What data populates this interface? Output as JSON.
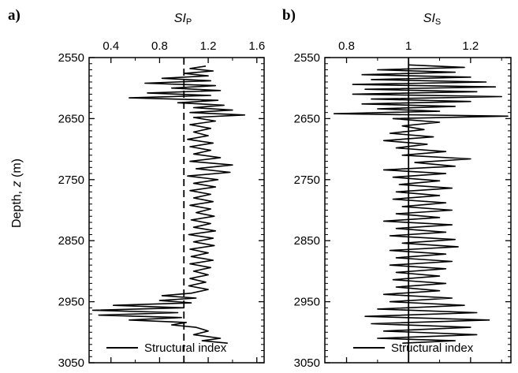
{
  "chart_data": [
    {
      "panel_label": "a)",
      "type": "line",
      "orientation": "depth-vertical",
      "title": "",
      "xlabel_main": "SI",
      "xlabel_sub": "P",
      "ylabel": "Depth, z (m)",
      "xlim": [
        0.22,
        1.66
      ],
      "xticks": [
        0.4,
        0.8,
        1.2,
        1.6
      ],
      "xtick_labels": [
        "0.4",
        "0.8",
        "1.2",
        "1.6"
      ],
      "ylim": [
        2550,
        3050
      ],
      "yticks": [
        2550,
        2650,
        2750,
        2850,
        2950,
        3050
      ],
      "ytick_labels": [
        "2550",
        "2650",
        "2750",
        "2850",
        "2950",
        "3050"
      ],
      "reference_line": {
        "x": 1.0,
        "style": "dashed"
      },
      "legend": {
        "label": "Structural index",
        "location": "bottom-right"
      },
      "series": [
        {
          "name": "Structural index",
          "color": "#000000",
          "points": [
            [
              1.18,
              2564
            ],
            [
              1.05,
              2568
            ],
            [
              1.24,
              2572
            ],
            [
              1.0,
              2576
            ],
            [
              1.2,
              2580
            ],
            [
              0.82,
              2584
            ],
            [
              1.22,
              2588
            ],
            [
              0.68,
              2592
            ],
            [
              1.26,
              2596
            ],
            [
              0.9,
              2600
            ],
            [
              1.3,
              2604
            ],
            [
              0.7,
              2608
            ],
            [
              1.22,
              2612
            ],
            [
              0.55,
              2616
            ],
            [
              1.28,
              2620
            ],
            [
              0.95,
              2624
            ],
            [
              1.33,
              2628
            ],
            [
              1.08,
              2632
            ],
            [
              1.4,
              2636
            ],
            [
              1.05,
              2640
            ],
            [
              1.5,
              2644
            ],
            [
              1.08,
              2648
            ],
            [
              1.26,
              2654
            ],
            [
              1.05,
              2660
            ],
            [
              1.22,
              2666
            ],
            [
              1.08,
              2672
            ],
            [
              1.2,
              2678
            ],
            [
              1.03,
              2684
            ],
            [
              1.24,
              2690
            ],
            [
              1.05,
              2696
            ],
            [
              1.22,
              2702
            ],
            [
              1.08,
              2708
            ],
            [
              1.3,
              2714
            ],
            [
              1.05,
              2720
            ],
            [
              1.4,
              2726
            ],
            [
              1.1,
              2732
            ],
            [
              1.38,
              2738
            ],
            [
              1.03,
              2744
            ],
            [
              1.28,
              2750
            ],
            [
              1.08,
              2756
            ],
            [
              1.26,
              2762
            ],
            [
              1.05,
              2768
            ],
            [
              1.22,
              2774
            ],
            [
              1.08,
              2780
            ],
            [
              1.24,
              2786
            ],
            [
              1.05,
              2792
            ],
            [
              1.22,
              2798
            ],
            [
              1.1,
              2804
            ],
            [
              1.25,
              2810
            ],
            [
              1.06,
              2816
            ],
            [
              1.22,
              2822
            ],
            [
              1.08,
              2828
            ],
            [
              1.26,
              2834
            ],
            [
              1.04,
              2840
            ],
            [
              1.24,
              2846
            ],
            [
              1.08,
              2852
            ],
            [
              1.25,
              2858
            ],
            [
              1.05,
              2864
            ],
            [
              1.2,
              2870
            ],
            [
              1.06,
              2876
            ],
            [
              1.24,
              2882
            ],
            [
              1.05,
              2888
            ],
            [
              1.22,
              2894
            ],
            [
              1.08,
              2900
            ],
            [
              1.2,
              2906
            ],
            [
              1.05,
              2912
            ],
            [
              1.18,
              2918
            ],
            [
              1.04,
              2924
            ],
            [
              1.2,
              2930
            ],
            [
              1.06,
              2936
            ],
            [
              0.82,
              2940
            ],
            [
              1.1,
              2944
            ],
            [
              0.8,
              2948
            ],
            [
              1.06,
              2952
            ],
            [
              0.42,
              2956
            ],
            [
              1.0,
              2960
            ],
            [
              0.25,
              2964
            ],
            [
              0.95,
              2968
            ],
            [
              0.3,
              2972
            ],
            [
              0.98,
              2976
            ],
            [
              0.55,
              2980
            ],
            [
              1.02,
              2984
            ],
            [
              0.9,
              2988
            ],
            [
              1.1,
              2992
            ],
            [
              1.2,
              2998
            ],
            [
              1.08,
              3004
            ],
            [
              1.3,
              3010
            ],
            [
              1.15,
              3014
            ],
            [
              1.36,
              3018
            ]
          ]
        }
      ]
    },
    {
      "panel_label": "b)",
      "type": "line",
      "orientation": "depth-vertical",
      "title": "",
      "xlabel_main": "SI",
      "xlabel_sub": "S",
      "ylabel": "",
      "xlim": [
        0.73,
        1.33
      ],
      "xticks": [
        0.8,
        1.0,
        1.2
      ],
      "xtick_labels": [
        "0.8",
        "1",
        "1.2"
      ],
      "ylim": [
        2550,
        3050
      ],
      "yticks": [
        2550,
        2650,
        2750,
        2850,
        2950,
        3050
      ],
      "ytick_labels": [
        "2550",
        "2650",
        "2750",
        "2850",
        "2950",
        "3050"
      ],
      "reference_line": {
        "x": 1.0,
        "style": "solid"
      },
      "legend": {
        "label": "Structural index",
        "location": "bottom-right"
      },
      "series": [
        {
          "name": "Structural index",
          "color": "#000000",
          "points": [
            [
              1.0,
              2562
            ],
            [
              1.18,
              2566
            ],
            [
              0.9,
              2570
            ],
            [
              1.15,
              2574
            ],
            [
              0.85,
              2578
            ],
            [
              1.2,
              2582
            ],
            [
              0.88,
              2586
            ],
            [
              1.25,
              2590
            ],
            [
              0.82,
              2594
            ],
            [
              1.28,
              2598
            ],
            [
              0.86,
              2602
            ],
            [
              1.22,
              2606
            ],
            [
              0.82,
              2610
            ],
            [
              1.3,
              2614
            ],
            [
              0.88,
              2618
            ],
            [
              1.2,
              2622
            ],
            [
              0.85,
              2626
            ],
            [
              1.15,
              2630
            ],
            [
              0.9,
              2634
            ],
            [
              1.1,
              2638
            ],
            [
              0.76,
              2642
            ],
            [
              1.32,
              2646
            ],
            [
              0.95,
              2650
            ],
            [
              1.1,
              2656
            ],
            [
              0.98,
              2662
            ],
            [
              1.05,
              2668
            ],
            [
              0.94,
              2674
            ],
            [
              1.08,
              2680
            ],
            [
              0.92,
              2686
            ],
            [
              1.06,
              2692
            ],
            [
              0.96,
              2698
            ],
            [
              1.12,
              2704
            ],
            [
              0.98,
              2710
            ],
            [
              1.2,
              2716
            ],
            [
              1.02,
              2722
            ],
            [
              1.15,
              2728
            ],
            [
              0.92,
              2734
            ],
            [
              1.12,
              2740
            ],
            [
              0.95,
              2746
            ],
            [
              1.1,
              2752
            ],
            [
              0.97,
              2758
            ],
            [
              1.14,
              2764
            ],
            [
              0.96,
              2770
            ],
            [
              1.1,
              2776
            ],
            [
              0.95,
              2782
            ],
            [
              1.12,
              2788
            ],
            [
              0.98,
              2794
            ],
            [
              1.14,
              2800
            ],
            [
              0.96,
              2806
            ],
            [
              1.1,
              2812
            ],
            [
              0.92,
              2818
            ],
            [
              1.14,
              2824
            ],
            [
              0.96,
              2830
            ],
            [
              1.12,
              2836
            ],
            [
              0.94,
              2842
            ],
            [
              1.15,
              2848
            ],
            [
              0.98,
              2854
            ],
            [
              1.16,
              2860
            ],
            [
              0.94,
              2866
            ],
            [
              1.12,
              2872
            ],
            [
              0.96,
              2878
            ],
            [
              1.14,
              2884
            ],
            [
              0.94,
              2890
            ],
            [
              1.12,
              2896
            ],
            [
              0.96,
              2902
            ],
            [
              1.1,
              2908
            ],
            [
              0.95,
              2914
            ],
            [
              1.12,
              2920
            ],
            [
              0.96,
              2926
            ],
            [
              1.1,
              2932
            ],
            [
              0.92,
              2938
            ],
            [
              1.14,
              2944
            ],
            [
              0.94,
              2950
            ],
            [
              1.18,
              2956
            ],
            [
              0.9,
              2962
            ],
            [
              1.22,
              2968
            ],
            [
              0.86,
              2974
            ],
            [
              1.26,
              2980
            ],
            [
              0.88,
              2986
            ],
            [
              1.2,
              2992
            ],
            [
              0.92,
              2998
            ],
            [
              1.22,
              3004
            ],
            [
              0.9,
              3010
            ],
            [
              1.15,
              3014
            ],
            [
              0.98,
              3018
            ]
          ]
        }
      ]
    }
  ]
}
